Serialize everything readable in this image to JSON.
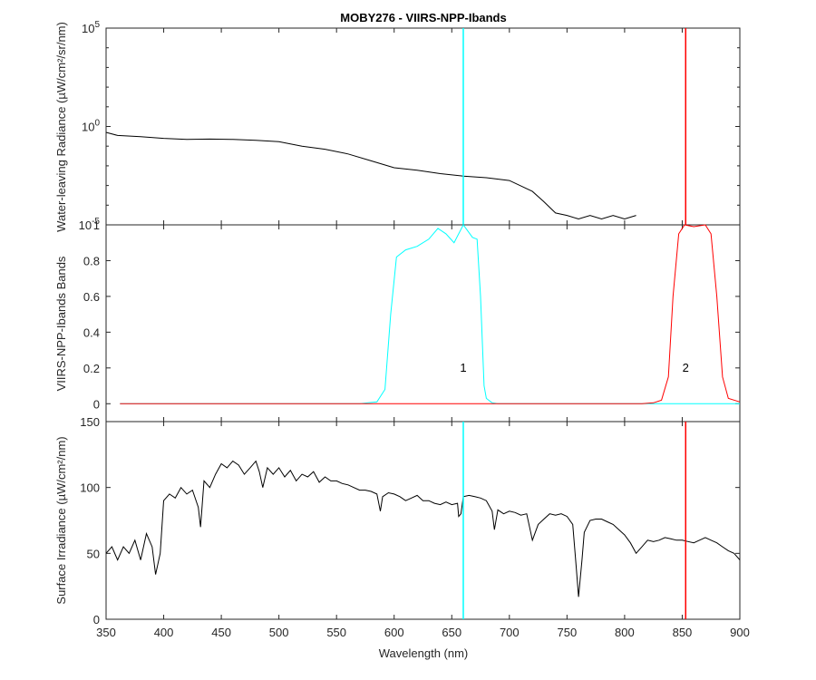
{
  "chart_data": {
    "title": "MOBY276 - VIIRS-NPP-Ibands",
    "xlabel": "Wavelength (nm)",
    "xlim": [
      350,
      900
    ],
    "xticks": [
      350,
      400,
      450,
      500,
      550,
      600,
      650,
      700,
      750,
      800,
      850,
      900
    ],
    "bands": [
      {
        "name": "1",
        "center": 660,
        "color": "#00ffff"
      },
      {
        "name": "2",
        "center": 853,
        "color": "#ff0000"
      }
    ],
    "panels": [
      {
        "id": "radiance",
        "type": "line",
        "scale": "log",
        "ylabel": "Water-leaving Radiance (µW/cm²/sr/nm)",
        "ylim": [
          1e-05,
          100000
        ],
        "yticks": [
          {
            "value": 1e-05,
            "base": "10",
            "exp": "-5"
          },
          {
            "value": 1,
            "base": "10",
            "exp": "0"
          },
          {
            "value": 100000,
            "base": "10",
            "exp": "5"
          }
        ],
        "series": [
          {
            "color": "#000000",
            "x": [
              350,
              360,
              380,
              400,
              420,
              440,
              460,
              480,
              500,
              520,
              540,
              560,
              580,
              600,
              620,
              640,
              660,
              680,
              700,
              720,
              730,
              740,
              750,
              760,
              770,
              780,
              790,
              800,
              810
            ],
            "y": [
              0.5,
              0.35,
              0.3,
              0.25,
              0.22,
              0.23,
              0.22,
              0.2,
              0.17,
              0.1,
              0.07,
              0.04,
              0.018,
              0.008,
              0.006,
              0.004,
              0.003,
              0.0025,
              0.0018,
              0.0005,
              0.00015,
              4e-05,
              3e-05,
              2e-05,
              3e-05,
              2e-05,
              3e-05,
              2e-05,
              3e-05
            ]
          }
        ]
      },
      {
        "id": "bands",
        "type": "line",
        "scale": "linear",
        "ylabel": "VIIRS-NPP-Ibands Bands",
        "ylim": [
          -0.1,
          1.0
        ],
        "yticks": [
          {
            "value": 0,
            "label": "0"
          },
          {
            "value": 0.2,
            "label": "0.2"
          },
          {
            "value": 0.4,
            "label": "0.4"
          },
          {
            "value": 0.6,
            "label": "0.6"
          },
          {
            "value": 0.8,
            "label": "0.8"
          },
          {
            "value": 1.0,
            "label": "1"
          }
        ],
        "series": [
          {
            "name": "1",
            "color": "#00ffff",
            "x": [
              362,
              570,
              585,
              592,
              597,
              602,
              610,
              620,
              630,
              638,
              645,
              652,
              660,
              668,
              672,
              675,
              678,
              680,
              685,
              690,
              900
            ],
            "y": [
              0,
              0,
              0.01,
              0.08,
              0.5,
              0.82,
              0.86,
              0.88,
              0.92,
              0.98,
              0.95,
              0.9,
              1.0,
              0.93,
              0.92,
              0.6,
              0.1,
              0.03,
              0.005,
              0,
              0
            ]
          },
          {
            "name": "2",
            "color": "#ff0000",
            "x": [
              362,
              815,
              825,
              832,
              838,
              842,
              847,
              852,
              860,
              870,
              875,
              880,
              885,
              890,
              900
            ],
            "y": [
              0,
              0,
              0.005,
              0.02,
              0.15,
              0.6,
              0.95,
              1.0,
              0.99,
              1.0,
              0.95,
              0.6,
              0.15,
              0.03,
              0.01
            ]
          }
        ]
      },
      {
        "id": "irradiance",
        "type": "line",
        "scale": "linear",
        "ylabel": "Surface Irradiance (µW/cm²/nm)",
        "ylim": [
          0,
          150
        ],
        "yticks": [
          {
            "value": 0,
            "label": "0"
          },
          {
            "value": 50,
            "label": "50"
          },
          {
            "value": 100,
            "label": "100"
          },
          {
            "value": 150,
            "label": "150"
          }
        ],
        "series": [
          {
            "color": "#000000",
            "x": [
              350,
              355,
              360,
              365,
              370,
              375,
              380,
              385,
              390,
              393,
              397,
              400,
              405,
              410,
              415,
              420,
              425,
              430,
              432,
              435,
              440,
              445,
              450,
              455,
              460,
              465,
              470,
              475,
              480,
              483,
              486,
              490,
              495,
              500,
              505,
              510,
              515,
              520,
              525,
              530,
              535,
              540,
              545,
              550,
              555,
              560,
              565,
              570,
              575,
              580,
              585,
              588,
              590,
              595,
              600,
              605,
              610,
              615,
              620,
              625,
              630,
              635,
              640,
              645,
              650,
              655,
              656,
              658,
              660,
              665,
              670,
              675,
              680,
              685,
              687,
              690,
              695,
              700,
              705,
              710,
              715,
              718,
              720,
              725,
              730,
              735,
              740,
              745,
              750,
              755,
              758,
              760,
              763,
              765,
              770,
              775,
              780,
              785,
              790,
              795,
              800,
              805,
              810,
              815,
              818,
              820,
              825,
              830,
              835,
              840,
              845,
              850,
              855,
              860,
              865,
              870,
              875,
              880,
              885,
              890,
              895,
              900
            ],
            "y": [
              50,
              55,
              45,
              55,
              50,
              60,
              45,
              65,
              55,
              34,
              50,
              90,
              95,
              92,
              100,
              95,
              98,
              85,
              70,
              105,
              100,
              110,
              118,
              115,
              120,
              117,
              110,
              115,
              120,
              112,
              100,
              115,
              110,
              115,
              108,
              113,
              105,
              110,
              108,
              112,
              104,
              108,
              105,
              105,
              103,
              102,
              100,
              98,
              98,
              97,
              95,
              82,
              93,
              96,
              95,
              93,
              90,
              92,
              94,
              90,
              90,
              88,
              87,
              89,
              87,
              88,
              78,
              80,
              93,
              94,
              93,
              92,
              90,
              82,
              68,
              83,
              80,
              82,
              81,
              79,
              80,
              68,
              60,
              72,
              76,
              80,
              79,
              80,
              78,
              72,
              40,
              17,
              45,
              66,
              75,
              76,
              76,
              74,
              72,
              68,
              64,
              58,
              50,
              55,
              58,
              60,
              59,
              60,
              62,
              61,
              60,
              60,
              59,
              58,
              60,
              62,
              60,
              58,
              55,
              52,
              50,
              45
            ]
          }
        ]
      }
    ]
  }
}
